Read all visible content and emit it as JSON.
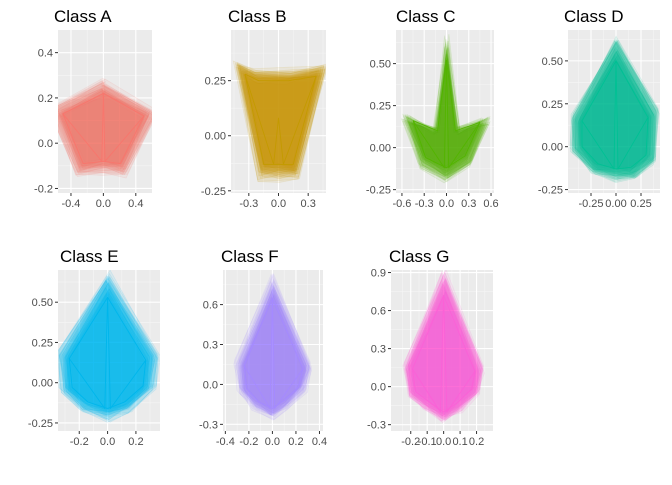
{
  "figure_title": "",
  "chart_data": [
    {
      "title": "Class A",
      "type": "line",
      "color": "#F8766D",
      "xlim": [
        -0.56,
        0.6
      ],
      "ylim": [
        -0.22,
        0.5
      ],
      "xticks": [
        -0.4,
        0.0,
        0.4
      ],
      "xtick_labels": [
        "-0.4",
        "0.0",
        "0.4"
      ],
      "yticks": [
        -0.2,
        0.0,
        0.2,
        0.4
      ],
      "ytick_labels": [
        "-0.2",
        "0.0",
        "0.2",
        "0.4"
      ],
      "shape_x": [
        0,
        0.5,
        0.21,
        0,
        -0.25,
        -0.5,
        0,
        0.5
      ],
      "shape_y": [
        0.22,
        0.12,
        -0.09,
        -0.08,
        -0.09,
        0.13,
        0.22,
        0.12
      ],
      "inner_x": [
        -0.5,
        -0.02,
        0,
        0.02,
        0.5
      ],
      "inner_y": [
        0.13,
        -0.08,
        0.22,
        -0.08,
        0.12
      ]
    },
    {
      "title": "Class B",
      "type": "line",
      "color": "#C49A00",
      "xlim": [
        -0.48,
        0.48
      ],
      "ylim": [
        -0.26,
        0.48
      ],
      "xticks": [
        -0.3,
        0.0,
        0.3
      ],
      "xtick_labels": [
        "-0.3",
        "0.0",
        "0.3"
      ],
      "yticks": [
        -0.25,
        0.0,
        0.25
      ],
      "ytick_labels": [
        "-0.25",
        "0.00",
        "0.25"
      ],
      "shape_x": [
        -0.34,
        -0.2,
        0.1,
        0.38,
        0.15,
        0,
        -0.15,
        -0.34
      ],
      "shape_y": [
        0.28,
        0.25,
        0.25,
        0.27,
        -0.13,
        -0.13,
        -0.13,
        0.28
      ],
      "inner_x": [
        -0.34,
        -0.05,
        0,
        0.05,
        0.38
      ],
      "inner_y": [
        0.28,
        -0.13,
        0.08,
        -0.13,
        0.27
      ]
    },
    {
      "title": "Class C",
      "type": "line",
      "color": "#53B400",
      "xlim": [
        -0.68,
        0.64
      ],
      "ylim": [
        -0.27,
        0.7
      ],
      "xticks": [
        -0.6,
        -0.3,
        0.0,
        0.3,
        0.6
      ],
      "xtick_labels": [
        "-0.6",
        "-0.3",
        "0.0",
        "0.3",
        "0.6"
      ],
      "yticks": [
        -0.25,
        0.0,
        0.25,
        0.5
      ],
      "ytick_labels": [
        "-0.25",
        "0.00",
        "0.25",
        "0.50"
      ],
      "shape_x": [
        0,
        0.12,
        0.45,
        0.25,
        0,
        -0.28,
        -0.45,
        -0.12,
        0
      ],
      "shape_y": [
        0.52,
        0.1,
        0.15,
        -0.05,
        -0.12,
        -0.06,
        0.16,
        0.1,
        0.52
      ],
      "inner_x": [
        -0.45,
        -0.03,
        0,
        0.03,
        0.45
      ],
      "inner_y": [
        0.16,
        -0.12,
        0.52,
        -0.12,
        0.15
      ]
    },
    {
      "title": "Class D",
      "type": "line",
      "color": "#00C094",
      "xlim": [
        -0.48,
        0.44
      ],
      "ylim": [
        -0.27,
        0.68
      ],
      "xticks": [
        -0.25,
        0.0,
        0.25
      ],
      "xtick_labels": [
        "-0.25",
        "0.00",
        "0.25"
      ],
      "yticks": [
        -0.25,
        0.0,
        0.25,
        0.5
      ],
      "ytick_labels": [
        "-0.25",
        "0.00",
        "0.25",
        "0.50"
      ],
      "shape_x": [
        0,
        0.32,
        0.3,
        0.15,
        0,
        -0.18,
        -0.34,
        -0.34,
        0
      ],
      "shape_y": [
        0.5,
        0.17,
        -0.05,
        -0.12,
        -0.13,
        -0.1,
        0.0,
        0.15,
        0.5
      ],
      "inner_x": [
        -0.34,
        -0.02,
        0,
        0.02,
        0.32
      ],
      "inner_y": [
        0.15,
        -0.13,
        0.5,
        -0.13,
        0.17
      ]
    },
    {
      "title": "Class E",
      "type": "line",
      "color": "#00B6EB",
      "xlim": [
        -0.35,
        0.37
      ],
      "ylim": [
        -0.3,
        0.7
      ],
      "xticks": [
        -0.2,
        0.0,
        0.2
      ],
      "xtick_labels": [
        "-0.2",
        "0.0",
        "0.2"
      ],
      "yticks": [
        -0.25,
        0.0,
        0.25,
        0.5
      ],
      "ytick_labels": [
        "-0.25",
        "0.00",
        "0.25",
        "0.50"
      ],
      "shape_x": [
        0,
        0.27,
        0.25,
        0.12,
        0,
        -0.14,
        -0.25,
        -0.27,
        0
      ],
      "shape_y": [
        0.53,
        0.14,
        -0.02,
        -0.12,
        -0.16,
        -0.12,
        -0.03,
        0.15,
        0.53
      ],
      "inner_x": [
        -0.27,
        -0.02,
        0,
        0.02,
        0.27
      ],
      "inner_y": [
        0.15,
        -0.16,
        0.53,
        -0.16,
        0.14
      ]
    },
    {
      "title": "Class F",
      "type": "line",
      "color": "#A58AFF",
      "xlim": [
        -0.42,
        0.43
      ],
      "ylim": [
        -0.35,
        0.86
      ],
      "xticks": [
        -0.4,
        -0.2,
        0.0,
        0.2,
        0.4
      ],
      "xtick_labels": [
        "-0.4",
        "-0.2",
        "0.0",
        "0.2",
        "0.4"
      ],
      "yticks": [
        -0.3,
        0.0,
        0.3,
        0.6
      ],
      "ytick_labels": [
        "-0.3",
        "0.0",
        "0.3",
        "0.6"
      ],
      "shape_x": [
        0,
        0.26,
        0.22,
        0.1,
        0,
        -0.12,
        -0.22,
        -0.24,
        0
      ],
      "shape_y": [
        0.65,
        0.12,
        -0.02,
        -0.12,
        -0.18,
        -0.13,
        -0.03,
        0.14,
        0.65
      ],
      "inner_x": [
        -0.24,
        -0.02,
        0,
        0.02,
        0.26
      ],
      "inner_y": [
        0.14,
        -0.18,
        0.65,
        -0.18,
        0.12
      ]
    },
    {
      "title": "Class G",
      "type": "line",
      "color": "#FB61D7",
      "xlim": [
        -0.32,
        0.3
      ],
      "ylim": [
        -0.35,
        0.92
      ],
      "xticks": [
        -0.2,
        -0.1,
        0.0,
        0.1,
        0.2
      ],
      "xtick_labels": [
        "-0.2",
        "-0.1",
        "0.0",
        "0.1",
        "0.2"
      ],
      "yticks": [
        -0.3,
        0.0,
        0.3,
        0.6,
        0.9
      ],
      "ytick_labels": [
        "-0.3",
        "0.0",
        "0.3",
        "0.6",
        "0.9"
      ],
      "shape_x": [
        0,
        0.19,
        0.17,
        0.08,
        0,
        -0.09,
        -0.17,
        -0.19,
        0
      ],
      "shape_y": [
        0.72,
        0.12,
        -0.02,
        -0.13,
        -0.2,
        -0.12,
        -0.04,
        0.14,
        0.72
      ],
      "inner_x": [
        -0.19,
        -0.02,
        0,
        0.02,
        0.19
      ],
      "inner_y": [
        0.14,
        -0.2,
        0.72,
        -0.2,
        0.12
      ]
    }
  ]
}
